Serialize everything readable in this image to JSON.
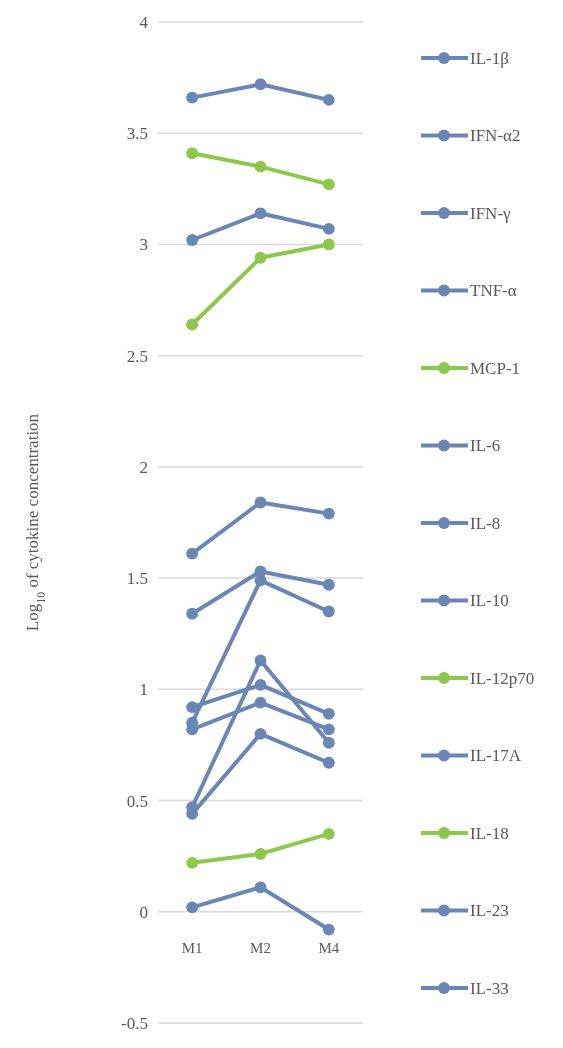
{
  "chart_data": {
    "type": "line",
    "ylabel": "Log$_{10}$ of cytokine concentration",
    "categories": [
      "M1",
      "M2",
      "M4"
    ],
    "ylim": [
      -0.5,
      4
    ],
    "yticks": [
      -0.5,
      0,
      0.5,
      1,
      1.5,
      2,
      2.5,
      3,
      3.5,
      4
    ],
    "grid": "y",
    "legend": "right",
    "marker": "circle",
    "line_style": "solid",
    "series": [
      {
        "name": "IL-1β",
        "color": "#6a86b4",
        "values": [
          3.66,
          3.72,
          3.65
        ]
      },
      {
        "name": "IFN-α2",
        "color": "#6a86b4",
        "values": [
          3.02,
          3.14,
          3.07
        ]
      },
      {
        "name": "IFN-γ",
        "color": "#6a86b4",
        "values": [
          1.61,
          1.84,
          1.79
        ]
      },
      {
        "name": "TNF-α",
        "color": "#6a86b4",
        "values": [
          1.34,
          1.53,
          1.47
        ]
      },
      {
        "name": "MCP-1",
        "color": "#8cc84b",
        "values": [
          3.41,
          3.35,
          3.27
        ]
      },
      {
        "name": "IL-6",
        "color": "#6a86b4",
        "values": [
          0.85,
          1.49,
          1.35
        ]
      },
      {
        "name": "IL-8",
        "color": "#6a86b4",
        "values": [
          0.92,
          1.02,
          0.89
        ]
      },
      {
        "name": "IL-10",
        "color": "#6a86b4",
        "values": [
          0.82,
          0.94,
          0.82
        ]
      },
      {
        "name": "IL-12p70",
        "color": "#8cc84b",
        "values": [
          2.64,
          2.94,
          3.0
        ]
      },
      {
        "name": "IL-17A",
        "color": "#6a86b4",
        "values": [
          0.47,
          1.13,
          0.76
        ]
      },
      {
        "name": "IL-18",
        "color": "#8cc84b",
        "values": [
          0.22,
          0.26,
          0.35
        ]
      },
      {
        "name": "IL-23",
        "color": "#6a86b4",
        "values": [
          0.44,
          0.8,
          0.67
        ]
      },
      {
        "name": "IL-33",
        "color": "#6a86b4",
        "values": [
          0.02,
          0.11,
          -0.08
        ]
      }
    ]
  }
}
